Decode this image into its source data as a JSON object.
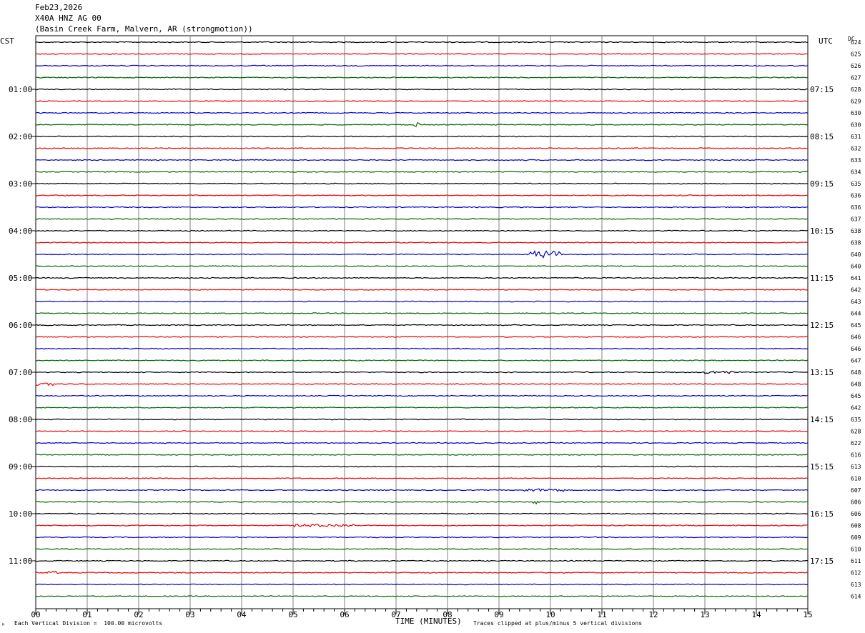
{
  "header": {
    "date": "Feb23,2026",
    "station": "X40A HNZ AG 00",
    "location": "(Basin Creek Farm, Malvern, AR (strongmotion))"
  },
  "left_timezone": "CST",
  "right_timezone": "UTC",
  "dc_label": "DC",
  "footer": {
    "scale_note": "Each Vertical Division =  100.00 microvolts",
    "clip_note": "Traces clipped at plus/minus 5 vertical divisions",
    "corner_mark": "ᴹ"
  },
  "colors": {
    "trace_cycle": [
      "#000000",
      "#ee0000",
      "#0000cc",
      "#006600"
    ],
    "grid": "#808080"
  },
  "chart_data": {
    "type": "line",
    "title": "X40A HNZ AG 00",
    "xlabel": "TIME (MINUTES)",
    "xlim": [
      0,
      15
    ],
    "x_ticks": [
      "00",
      "01",
      "02",
      "03",
      "04",
      "05",
      "06",
      "07",
      "08",
      "09",
      "10",
      "11",
      "12",
      "13",
      "14",
      "15"
    ],
    "left_hour_labels": [
      {
        "row": 4,
        "label": "01:00"
      },
      {
        "row": 8,
        "label": "02:00"
      },
      {
        "row": 12,
        "label": "03:00"
      },
      {
        "row": 16,
        "label": "04:00"
      },
      {
        "row": 20,
        "label": "05:00"
      },
      {
        "row": 24,
        "label": "06:00"
      },
      {
        "row": 28,
        "label": "07:00"
      },
      {
        "row": 32,
        "label": "08:00"
      },
      {
        "row": 36,
        "label": "09:00"
      },
      {
        "row": 40,
        "label": "10:00"
      },
      {
        "row": 44,
        "label": "11:00"
      }
    ],
    "right_hour_labels": [
      {
        "row": 4,
        "label": "07:15"
      },
      {
        "row": 8,
        "label": "08:15"
      },
      {
        "row": 12,
        "label": "09:15"
      },
      {
        "row": 16,
        "label": "10:15"
      },
      {
        "row": 20,
        "label": "11:15"
      },
      {
        "row": 24,
        "label": "12:15"
      },
      {
        "row": 28,
        "label": "13:15"
      },
      {
        "row": 32,
        "label": "14:15"
      },
      {
        "row": 36,
        "label": "15:15"
      },
      {
        "row": 40,
        "label": "16:15"
      },
      {
        "row": 44,
        "label": "17:15"
      }
    ],
    "dc_offsets": [
      624,
      625,
      626,
      627,
      628,
      629,
      630,
      630,
      631,
      632,
      633,
      634,
      635,
      636,
      636,
      637,
      638,
      638,
      640,
      640,
      641,
      642,
      643,
      644,
      645,
      646,
      646,
      647,
      648,
      648,
      645,
      642,
      635,
      628,
      622,
      616,
      613,
      610,
      607,
      606,
      606,
      608,
      609,
      610,
      611,
      612,
      613,
      614
    ],
    "events": [
      {
        "row": 18,
        "x_min": 9.6,
        "x_max": 10.2,
        "amp": 5
      },
      {
        "row": 7,
        "x_min": 7.35,
        "x_max": 7.45,
        "amp": 3
      },
      {
        "row": 28,
        "x_min": 12.9,
        "x_max": 13.6,
        "amp": 2
      },
      {
        "row": 29,
        "x_min": 0.0,
        "x_max": 0.35,
        "amp": 2
      },
      {
        "row": 38,
        "x_min": 9.5,
        "x_max": 10.3,
        "amp": 2
      },
      {
        "row": 39,
        "x_min": 9.65,
        "x_max": 9.8,
        "amp": 4
      },
      {
        "row": 41,
        "x_min": 5.0,
        "x_max": 6.2,
        "amp": 2
      },
      {
        "row": 45,
        "x_min": 0.25,
        "x_max": 0.45,
        "amp": 2
      }
    ]
  }
}
